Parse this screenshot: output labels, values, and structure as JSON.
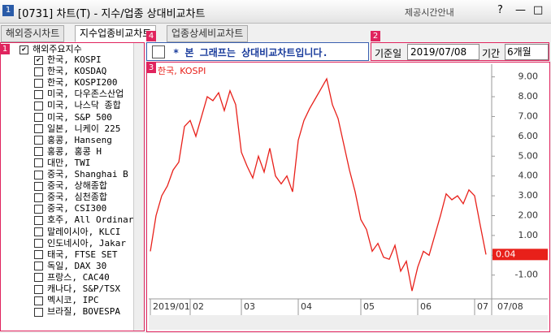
{
  "window": {
    "icon": "1",
    "title": "[0731] 차트(T) - 지수/업종 상대비교차트",
    "help": "제공시간안내",
    "buttons": [
      "?",
      "—",
      "□",
      "✕"
    ]
  },
  "tabs": [
    "해외증시차트",
    "지수업종비교차트",
    "업종상세비교차트"
  ],
  "badges": [
    "1",
    "2",
    "3",
    "4"
  ],
  "tree": {
    "root": "해외주요지수",
    "root_checked": true,
    "items": [
      {
        "label": "한국, KOSPI",
        "checked": true
      },
      {
        "label": "한국, KOSDAQ",
        "checked": false
      },
      {
        "label": "한국, KOSPI200",
        "checked": false
      },
      {
        "label": "미국, 다우존스산업",
        "checked": false
      },
      {
        "label": "미국, 나스닥 종합",
        "checked": false
      },
      {
        "label": "미국, S&P 500",
        "checked": false
      },
      {
        "label": "일본, 니케이 225",
        "checked": false
      },
      {
        "label": "홍콩, Hanseng",
        "checked": false
      },
      {
        "label": "홍콩, 홍콩 H",
        "checked": false
      },
      {
        "label": "대만, TWI",
        "checked": false
      },
      {
        "label": "중국, Shanghai B",
        "checked": false
      },
      {
        "label": "중국, 상해종합",
        "checked": false
      },
      {
        "label": "중국, 심천종합",
        "checked": false
      },
      {
        "label": "중국, CSI300",
        "checked": false
      },
      {
        "label": "호주, All Ordinar",
        "checked": false
      },
      {
        "label": "말레이시아, KLCI",
        "checked": false
      },
      {
        "label": "인도네시아, Jakar",
        "checked": false
      },
      {
        "label": "태국, FTSE SET",
        "checked": false
      },
      {
        "label": "독일, DAX 30",
        "checked": false
      },
      {
        "label": "프랑스, CAC40",
        "checked": false
      },
      {
        "label": "캐나다, S&P/TSX",
        "checked": false
      },
      {
        "label": "멕시코, IPC",
        "checked": false
      },
      {
        "label": "브라질, BOVESPA",
        "checked": false
      }
    ]
  },
  "toolbar": {
    "notice": "* 본 그래프는 상대비교차트입니다.",
    "date_label": "기준일",
    "date": "2019/07/08",
    "period_label": "기간",
    "period": "6개월"
  },
  "chart_data": {
    "type": "line",
    "categories": [
      "2019/01",
      null,
      null,
      null,
      null,
      null,
      null,
      "02",
      null,
      null,
      null,
      null,
      null,
      null,
      null,
      null,
      "03",
      null,
      null,
      null,
      null,
      null,
      null,
      null,
      null,
      null,
      "04",
      null,
      null,
      null,
      null,
      null,
      null,
      null,
      null,
      null,
      null,
      "05",
      null,
      null,
      null,
      null,
      null,
      null,
      null,
      null,
      null,
      "06",
      null,
      null,
      null,
      null,
      null,
      null,
      null,
      null,
      null,
      "07",
      null,
      null
    ],
    "x_end_label": "07/08",
    "series": [
      {
        "name": "한국, KOSPI",
        "color": "#e8201a",
        "values": [
          0.2,
          2.0,
          3.0,
          3.5,
          4.3,
          4.7,
          6.5,
          6.8,
          6.0,
          7.0,
          8.0,
          7.8,
          8.2,
          7.3,
          8.3,
          7.6,
          5.2,
          4.5,
          3.9,
          5.0,
          4.2,
          5.4,
          4.0,
          3.6,
          4.0,
          3.2,
          5.8,
          6.8,
          7.4,
          7.9,
          8.4,
          8.9,
          7.6,
          6.9,
          5.6,
          4.3,
          3.2,
          1.8,
          1.3,
          0.2,
          0.6,
          -0.1,
          -0.2,
          0.5,
          -0.8,
          -0.3,
          -1.8,
          -0.6,
          0.2,
          0.0,
          1.0,
          2.0,
          3.1,
          2.8,
          3.0,
          2.6,
          3.3,
          3.0,
          1.5,
          0.04
        ]
      }
    ],
    "ylim": [
      -2.2,
      9.6
    ],
    "yticks": [
      {
        "value": 9,
        "label": "9.00"
      },
      {
        "value": 8,
        "label": "8.00"
      },
      {
        "value": 7,
        "label": "7.00"
      },
      {
        "value": 6,
        "label": "6.00"
      },
      {
        "value": 5,
        "label": "5.00"
      },
      {
        "value": 4,
        "label": "4.00"
      },
      {
        "value": 3,
        "label": "3.00"
      },
      {
        "value": 2,
        "label": "2.00"
      },
      {
        "value": 1,
        "label": "1.00"
      },
      {
        "value": 0,
        "label": "0.00"
      },
      {
        "value": -1,
        "label": "-1.00"
      }
    ],
    "grid": false
  }
}
